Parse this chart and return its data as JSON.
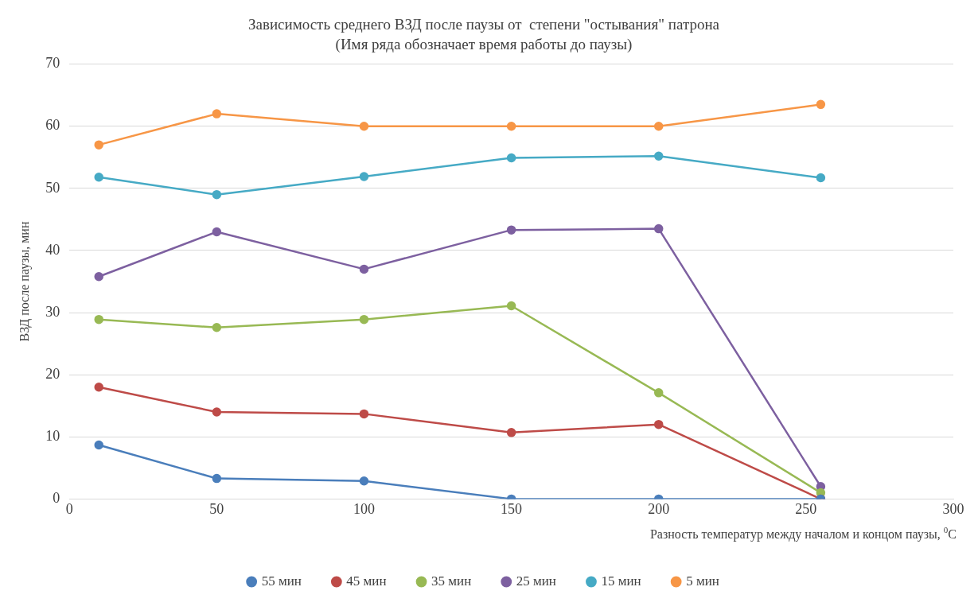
{
  "chart_data": {
    "type": "line",
    "title": "Зависимость среднего ВЗД после паузы от  степени \"остывания\" патрона",
    "subtitle": "(Имя ряда обозначает время работы до паузы)",
    "xlabel": "Разность температур между началом и концом паузы, $^{0}$C",
    "ylabel": "ВЗД после паузы, мин",
    "x": [
      10,
      50,
      100,
      150,
      200,
      255
    ],
    "series": [
      {
        "name": "55 мин",
        "color": "#4a7ebb",
        "values": [
          8.7,
          3.3,
          2.9,
          0,
          0,
          0
        ]
      },
      {
        "name": "45 мин",
        "color": "#be4b48",
        "values": [
          18.0,
          14.0,
          13.7,
          10.7,
          12.0,
          0
        ]
      },
      {
        "name": "35 мин",
        "color": "#98b954",
        "values": [
          28.9,
          27.6,
          28.9,
          31.1,
          17.1,
          1.0
        ]
      },
      {
        "name": "25 мин",
        "color": "#7d60a0",
        "values": [
          35.8,
          43.0,
          37.0,
          43.3,
          43.5,
          2.0
        ]
      },
      {
        "name": "15 мин",
        "color": "#46aac5",
        "values": [
          51.8,
          49.0,
          51.9,
          54.9,
          55.2,
          51.7
        ]
      },
      {
        "name": "5 мин",
        "color": "#f79646",
        "values": [
          57.0,
          62.0,
          60.0,
          60.0,
          60.0,
          63.5
        ]
      }
    ],
    "xlim": [
      0,
      300
    ],
    "xticks": [
      0,
      50,
      100,
      150,
      200,
      250,
      300
    ],
    "ylim": [
      0,
      70
    ],
    "yticks": [
      0,
      10,
      20,
      30,
      40,
      50,
      60,
      70
    ],
    "grid": "y",
    "legend": "bottom",
    "marker": "circle",
    "line_style": "solid"
  }
}
